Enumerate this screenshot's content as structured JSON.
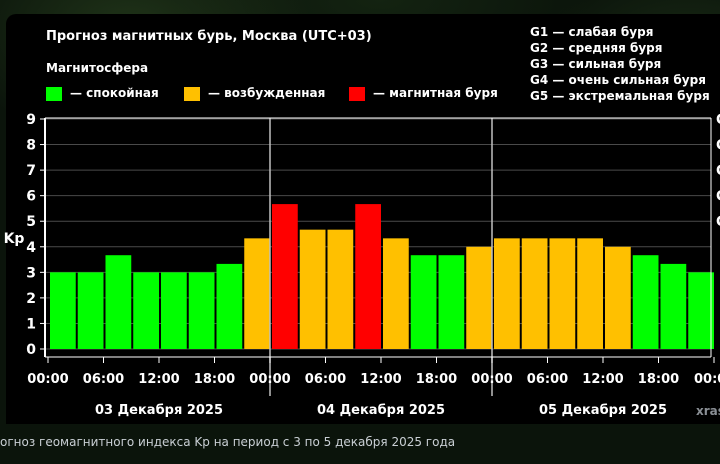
{
  "title": "Прогноз магнитных бурь, Москва (UTC+03)",
  "legend": {
    "heading": "Магнитосфера",
    "items": [
      {
        "label": "— спокойная",
        "color": "#00ff00"
      },
      {
        "label": "— возбужденная",
        "color": "#ffc000"
      },
      {
        "label": "— магнитная буря",
        "color": "#ff0000"
      }
    ]
  },
  "storm_levels": [
    "G1 — слабая буря",
    "G2 — средняя буря",
    "G3 — сильная буря",
    "G4 — очень сильная буря",
    "G5 — экстремальная буря"
  ],
  "chart_data": {
    "type": "bar",
    "ylabel": "Kp",
    "ylim": [
      0,
      9
    ],
    "yticks": [
      "0",
      "1",
      "2",
      "3",
      "4",
      "5",
      "6",
      "7",
      "8",
      "9"
    ],
    "right_tick_fragments": [
      "G",
      "G",
      "G",
      "G",
      "G"
    ],
    "grid": true,
    "values": [
      3.0,
      3.0,
      3.67,
      3.0,
      3.0,
      3.0,
      3.33,
      4.33,
      5.67,
      4.67,
      4.67,
      5.67,
      4.33,
      3.67,
      3.67,
      4.0,
      4.33,
      4.33,
      4.33,
      4.33,
      4.0,
      3.67,
      3.33,
      3.0
    ],
    "colors": [
      "#00ff00",
      "#00ff00",
      "#00ff00",
      "#00ff00",
      "#00ff00",
      "#00ff00",
      "#00ff00",
      "#ffc000",
      "#ff0000",
      "#ffc000",
      "#ffc000",
      "#ff0000",
      "#ffc000",
      "#00ff00",
      "#00ff00",
      "#ffc000",
      "#ffc000",
      "#ffc000",
      "#ffc000",
      "#ffc000",
      "#ffc000",
      "#00ff00",
      "#00ff00",
      "#00ff00"
    ],
    "xtick_labels": [
      "00:00",
      "06:00",
      "12:00",
      "18:00",
      "00:00",
      "06:00",
      "12:00",
      "18:00",
      "00:00",
      "06:00",
      "12:00",
      "18:00",
      "00:0"
    ],
    "days": [
      "03 Декабря 2025",
      "04 Декабря 2025",
      "05 Декабря 2025"
    ]
  },
  "watermark": "xras",
  "caption": "огноз геомагнитного индекса Kp на период с 3 по 5 декабря 2025 года"
}
